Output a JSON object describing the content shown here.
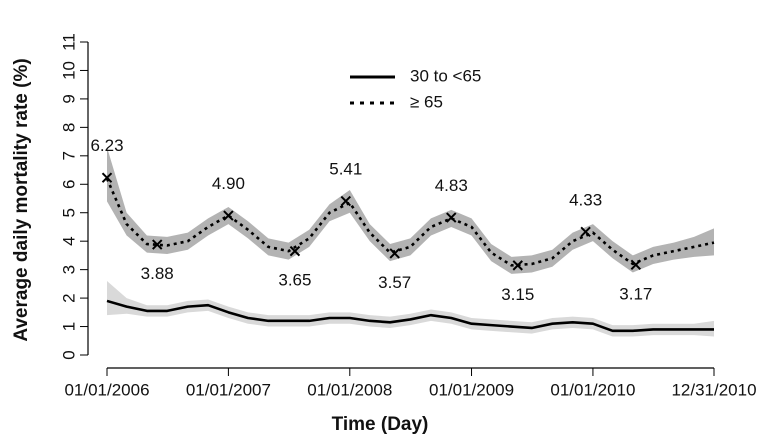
{
  "chart_data": {
    "type": "line",
    "xlabel": "Time (Day)",
    "ylabel": "Average daily mortality rate (%)",
    "xlim": [
      "2006-01-01",
      "2010-12-31"
    ],
    "xticks": [
      {
        "value": "2006-01-01",
        "label": "01/01/2006"
      },
      {
        "value": "2007-01-01",
        "label": "01/01/2007"
      },
      {
        "value": "2008-01-01",
        "label": "01/01/2008"
      },
      {
        "value": "2009-01-01",
        "label": "01/01/2009"
      },
      {
        "value": "2010-01-01",
        "label": "01/01/2010"
      },
      {
        "value": "2010-12-31",
        "label": "12/31/2010"
      }
    ],
    "ylim": [
      0,
      11
    ],
    "yticks": [
      0,
      1,
      2,
      3,
      4,
      5,
      6,
      7,
      8,
      9,
      10,
      11
    ],
    "legend": "top",
    "x": [
      "2006-01-01",
      "2006-03-01",
      "2006-05-01",
      "2006-07-01",
      "2006-09-01",
      "2006-11-01",
      "2007-01-01",
      "2007-03-01",
      "2007-05-01",
      "2007-07-01",
      "2007-09-01",
      "2007-11-01",
      "2008-01-01",
      "2008-03-01",
      "2008-05-01",
      "2008-07-01",
      "2008-09-01",
      "2008-11-01",
      "2009-01-01",
      "2009-03-01",
      "2009-05-01",
      "2009-07-01",
      "2009-09-01",
      "2009-11-01",
      "2010-01-01",
      "2010-03-01",
      "2010-05-01",
      "2010-07-01",
      "2010-09-01",
      "2010-11-01",
      "2010-12-31"
    ],
    "series": [
      {
        "name": "30 to <65",
        "color": "#000000",
        "band_color": "#d9d9d9",
        "dash": false,
        "values": [
          1.9,
          1.7,
          1.55,
          1.55,
          1.7,
          1.75,
          1.5,
          1.3,
          1.2,
          1.2,
          1.2,
          1.3,
          1.3,
          1.2,
          1.15,
          1.25,
          1.4,
          1.3,
          1.1,
          1.05,
          1.0,
          0.95,
          1.1,
          1.15,
          1.1,
          0.85,
          0.85,
          0.9,
          0.9,
          0.9,
          0.9
        ],
        "lower": [
          1.4,
          1.45,
          1.35,
          1.35,
          1.5,
          1.55,
          1.3,
          1.1,
          1.0,
          1.0,
          1.0,
          1.1,
          1.1,
          1.0,
          0.95,
          1.05,
          1.2,
          1.1,
          0.9,
          0.85,
          0.8,
          0.75,
          0.9,
          0.95,
          0.9,
          0.65,
          0.65,
          0.7,
          0.7,
          0.7,
          0.65
        ],
        "upper": [
          2.6,
          2.0,
          1.75,
          1.75,
          1.9,
          1.95,
          1.7,
          1.5,
          1.4,
          1.4,
          1.4,
          1.5,
          1.5,
          1.4,
          1.35,
          1.45,
          1.6,
          1.5,
          1.3,
          1.25,
          1.2,
          1.15,
          1.3,
          1.35,
          1.3,
          1.05,
          1.05,
          1.1,
          1.1,
          1.1,
          1.2
        ]
      },
      {
        "name": "≥ 65",
        "color": "#000000",
        "band_color": "#b3b3b3",
        "dash": true,
        "values": [
          6.2,
          4.6,
          3.9,
          3.85,
          4.0,
          4.5,
          4.9,
          4.4,
          3.8,
          3.65,
          4.1,
          5.0,
          5.35,
          4.3,
          3.6,
          3.8,
          4.5,
          4.8,
          4.5,
          3.6,
          3.15,
          3.2,
          3.4,
          4.0,
          4.3,
          3.7,
          3.2,
          3.5,
          3.65,
          3.8,
          3.95
        ],
        "lower": [
          5.4,
          4.2,
          3.6,
          3.55,
          3.7,
          4.2,
          4.6,
          4.1,
          3.5,
          3.35,
          3.8,
          4.7,
          5.0,
          4.0,
          3.3,
          3.5,
          4.2,
          4.5,
          4.2,
          3.3,
          2.85,
          2.9,
          3.1,
          3.7,
          4.0,
          3.4,
          2.9,
          3.2,
          3.35,
          3.45,
          3.5
        ],
        "upper": [
          7.3,
          5.0,
          4.2,
          4.15,
          4.3,
          4.8,
          5.2,
          4.7,
          4.1,
          3.95,
          4.4,
          5.3,
          5.8,
          4.6,
          3.9,
          4.1,
          4.8,
          5.1,
          4.8,
          3.9,
          3.45,
          3.5,
          3.7,
          4.3,
          4.6,
          4.0,
          3.5,
          3.8,
          3.95,
          4.15,
          4.45
        ]
      }
    ],
    "points": {
      "x": [
        "2006-01-01",
        "2006-06-01",
        "2007-01-01",
        "2007-07-20",
        "2007-12-20",
        "2008-05-15",
        "2008-11-01",
        "2009-05-20",
        "2009-12-10",
        "2010-05-10"
      ],
      "values": [
        6.23,
        3.88,
        4.9,
        3.65,
        5.41,
        3.57,
        4.83,
        3.15,
        4.33,
        3.17
      ],
      "value_labels": [
        "6.23",
        "3.88",
        "4.90",
        "3.65",
        "5.41",
        "3.57",
        "4.83",
        "3.15",
        "4.33",
        "3.17"
      ]
    }
  }
}
